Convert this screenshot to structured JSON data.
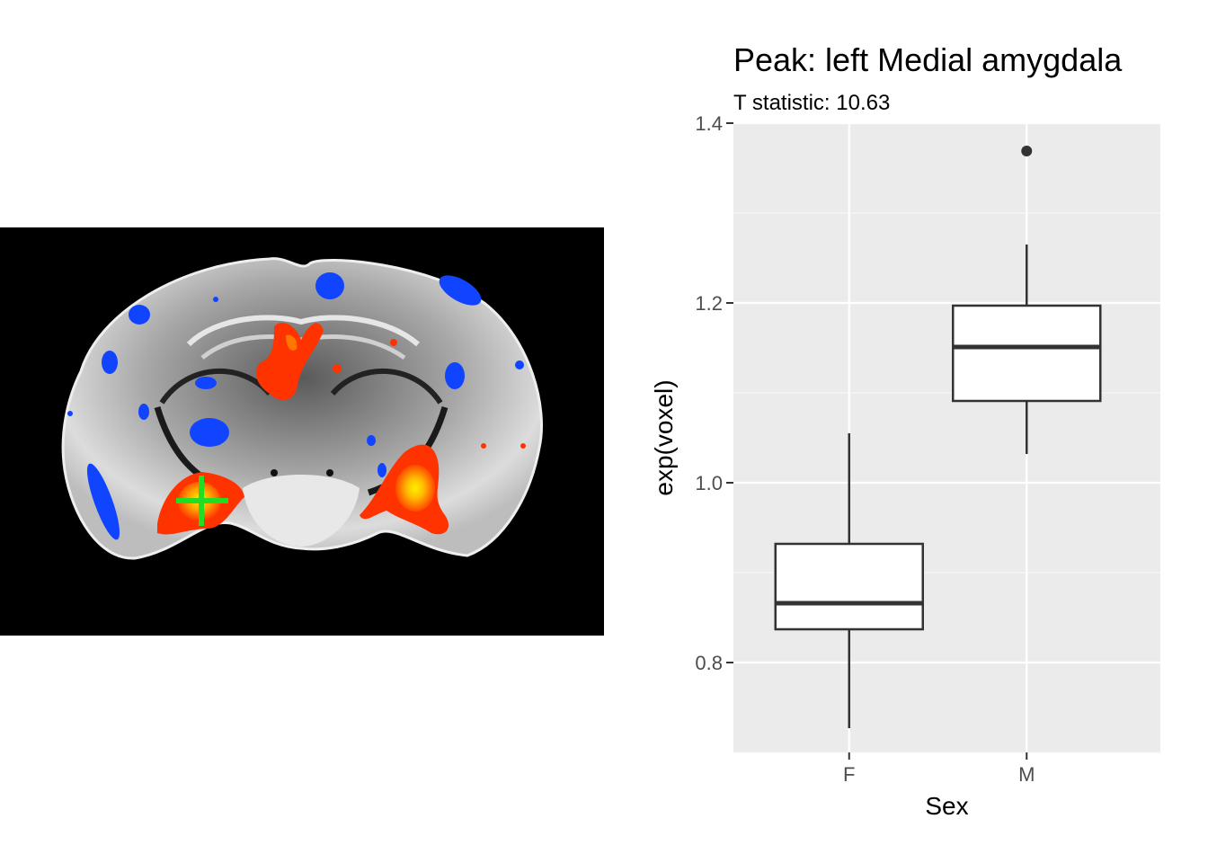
{
  "colors": {
    "panel_background": "#ebebeb",
    "grid_major": "#ffffff",
    "grid_minor": "#f5f5f5",
    "box_stroke": "#333333",
    "box_fill": "#ffffff",
    "tick_text": "#4d4d4d",
    "crosshair": "#22dd22",
    "brain_positive": "#ff3300",
    "brain_peak": "#ffee00",
    "brain_negative": "#1144ff"
  },
  "brain_image": {
    "description_icon": "coronal-brain-slice-icon",
    "crosshair_icon": "green-crosshair-icon"
  },
  "chart_data": {
    "type": "box",
    "title": "Peak: left Medial amygdala",
    "subtitle": "T statistic: 10.63",
    "xlabel": "Sex",
    "ylabel": "exp(voxel)",
    "categories": [
      "F",
      "M"
    ],
    "ylim": [
      0.7,
      1.4
    ],
    "yticks": [
      0.8,
      1.0,
      1.2,
      1.4
    ],
    "ytick_labels": [
      "0.8",
      "1.0",
      "1.2",
      "1.4"
    ],
    "boxes": [
      {
        "category": "F",
        "whisker_low": 0.727,
        "q1": 0.837,
        "median": 0.866,
        "q3": 0.932,
        "whisker_high": 1.055,
        "outliers": []
      },
      {
        "category": "M",
        "whisker_low": 1.032,
        "q1": 1.091,
        "median": 1.151,
        "q3": 1.197,
        "whisker_high": 1.265,
        "outliers": [
          1.369
        ]
      }
    ],
    "grid": true,
    "legend": "none"
  }
}
